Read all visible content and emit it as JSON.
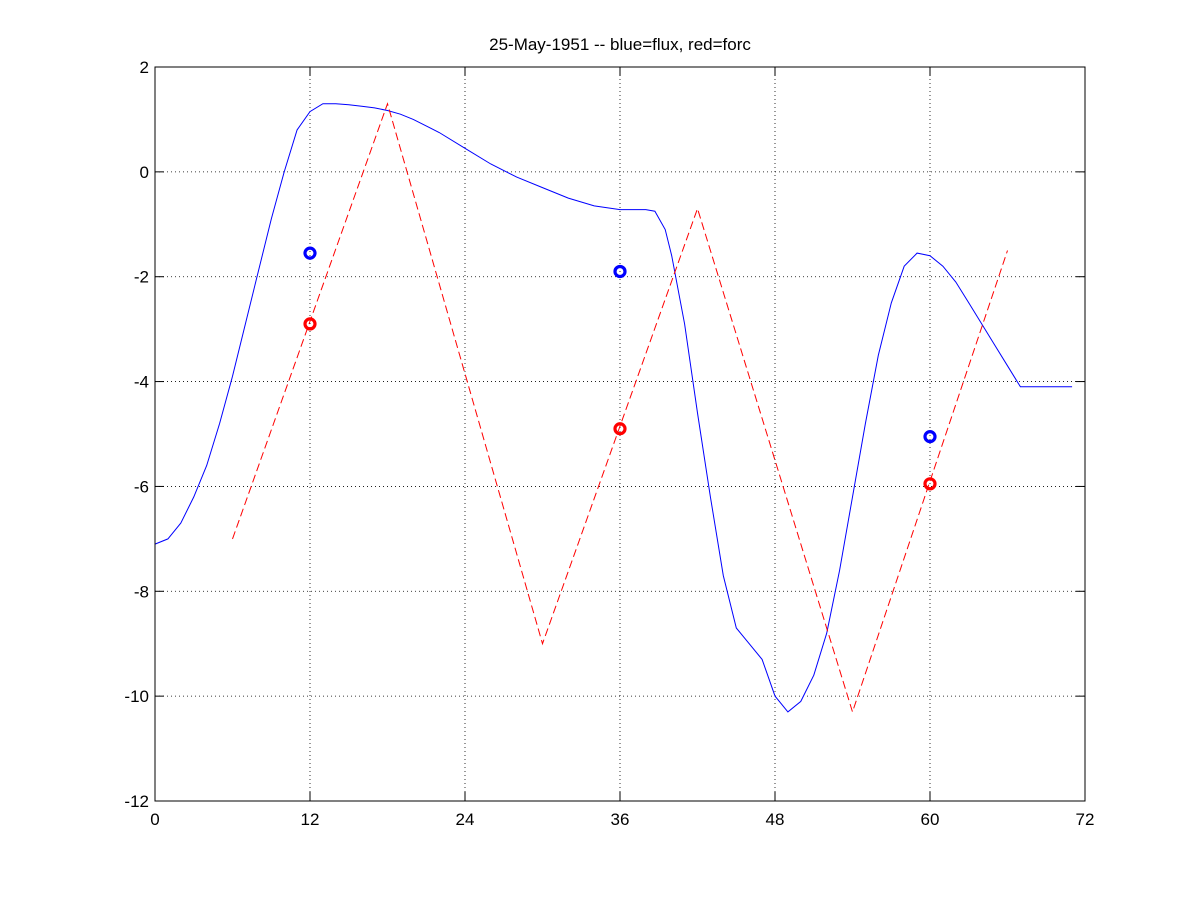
{
  "chart_data": {
    "type": "line",
    "title": "25-May-1951 -- blue=flux, red=forc",
    "xlabel": "",
    "ylabel": "",
    "xlim": [
      0,
      72
    ],
    "ylim": [
      -12,
      2
    ],
    "xticks": [
      0,
      12,
      24,
      36,
      48,
      60,
      72
    ],
    "yticks": [
      2,
      0,
      -2,
      -4,
      -6,
      -8,
      -10,
      -12
    ],
    "grid": true,
    "series": [
      {
        "color": "#0000ff",
        "style": "solid",
        "x": [
          0,
          1,
          2,
          3,
          4,
          5,
          6,
          7,
          8,
          9,
          10,
          11,
          12,
          13,
          14,
          15,
          16,
          17,
          18,
          19,
          20,
          22,
          24,
          26,
          28,
          30,
          32,
          34,
          36,
          37,
          38,
          38.7,
          39.5,
          40,
          41,
          42,
          43,
          44,
          45,
          46,
          47,
          48,
          49,
          50,
          51,
          52,
          53,
          54,
          55,
          56,
          57,
          58,
          59,
          60,
          61,
          62,
          63,
          64,
          65,
          66,
          67,
          68,
          69,
          70,
          71
        ],
        "y": [
          -7.1,
          -7.0,
          -6.7,
          -6.2,
          -5.6,
          -4.8,
          -3.9,
          -2.9,
          -1.9,
          -0.9,
          0.0,
          0.8,
          1.15,
          1.3,
          1.3,
          1.28,
          1.25,
          1.22,
          1.17,
          1.1,
          1.0,
          0.75,
          0.45,
          0.15,
          -0.1,
          -0.3,
          -0.5,
          -0.65,
          -0.72,
          -0.72,
          -0.72,
          -0.75,
          -1.1,
          -1.6,
          -2.9,
          -4.6,
          -6.2,
          -7.7,
          -8.7,
          -9.0,
          -9.3,
          -10.0,
          -10.3,
          -10.1,
          -9.6,
          -8.8,
          -7.6,
          -6.2,
          -4.8,
          -3.5,
          -2.5,
          -1.8,
          -1.55,
          -1.6,
          -1.8,
          -2.1,
          -2.5,
          -2.9,
          -3.3,
          -3.7,
          -4.1,
          -4.1,
          -4.1,
          -4.1,
          -4.1
        ]
      },
      {
        "color": "#ff0000",
        "style": "dashed",
        "x": [
          6,
          18,
          30,
          42,
          54,
          66
        ],
        "y": [
          -7.0,
          1.3,
          -9.0,
          -0.7,
          -10.3,
          -1.5
        ]
      }
    ],
    "markers": [
      {
        "color": "#0000ff",
        "x": 12,
        "y": -1.55
      },
      {
        "color": "#ff0000",
        "x": 12,
        "y": -2.9
      },
      {
        "color": "#0000ff",
        "x": 36,
        "y": -1.9
      },
      {
        "color": "#ff0000",
        "x": 36,
        "y": -4.9
      },
      {
        "color": "#0000ff",
        "x": 60,
        "y": -5.05
      },
      {
        "color": "#ff0000",
        "x": 60,
        "y": -5.95
      }
    ]
  }
}
